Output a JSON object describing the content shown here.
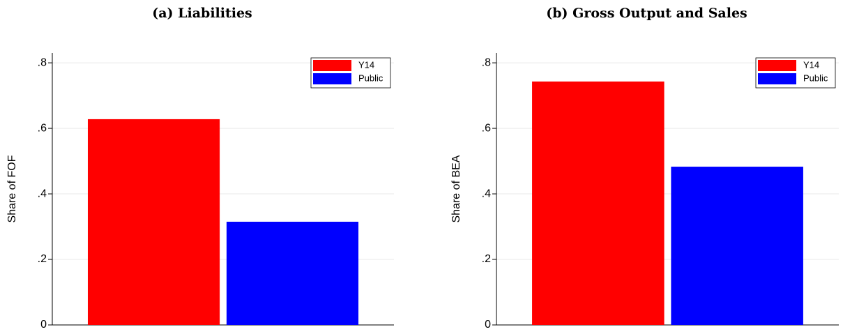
{
  "chart_data": [
    {
      "type": "bar",
      "title": "(a) Liabilities",
      "y_label": "Share of FOF",
      "categories": [
        null
      ],
      "series": [
        {
          "name": "Y14",
          "color": "#ff0000",
          "values": [
            0.628
          ]
        },
        {
          "name": "Public",
          "color": "#0000ff",
          "values": [
            0.315
          ]
        }
      ],
      "ylim": [
        0,
        0.83
      ],
      "yticks": [
        0,
        {
          "value": 0.2,
          "label": ".2"
        },
        {
          "value": 0.4,
          "label": ".4"
        },
        {
          "value": 0.6,
          "label": ".6"
        },
        {
          "value": 0.8,
          "label": ".8"
        }
      ],
      "grid": true,
      "legend": "top-right"
    },
    {
      "type": "bar",
      "title": "(b) Gross Output and Sales",
      "y_label": "Share of BEA",
      "categories": [
        null
      ],
      "series": [
        {
          "name": "Y14",
          "color": "#ff0000",
          "values": [
            0.743
          ]
        },
        {
          "name": "Public",
          "color": "#0000ff",
          "values": [
            0.483
          ]
        }
      ],
      "ylim": [
        0,
        0.83
      ],
      "yticks": [
        0,
        {
          "value": 0.2,
          "label": ".2"
        },
        {
          "value": 0.4,
          "label": ".4"
        },
        {
          "value": 0.6,
          "label": ".6"
        },
        {
          "value": 0.8,
          "label": ".8"
        }
      ],
      "grid": true,
      "legend": "top-right"
    }
  ]
}
